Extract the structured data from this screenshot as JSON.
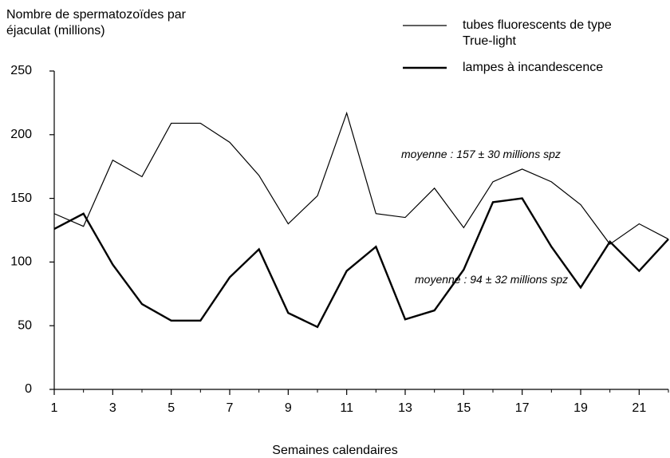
{
  "chart_data": {
    "type": "line",
    "ylabel": "Nombre de spermatozoïdes par éjaculat (millions)",
    "xlabel": "Semaines calendaires",
    "x": [
      1,
      2,
      3,
      4,
      5,
      6,
      7,
      8,
      9,
      10,
      11,
      12,
      13,
      14,
      15,
      16,
      17,
      18,
      19,
      20,
      21,
      22
    ],
    "series": [
      {
        "name": "tubes fluorescents de type True-light",
        "color": "#000000",
        "width": 1.2,
        "values": [
          138,
          128,
          180,
          167,
          209,
          209,
          194,
          168,
          130,
          152,
          217,
          138,
          135,
          158,
          127,
          163,
          173,
          163,
          145,
          114,
          130,
          118
        ]
      },
      {
        "name": "lampes à incandescence",
        "color": "#000000",
        "width": 2.4,
        "values": [
          126,
          138,
          98,
          67,
          54,
          54,
          88,
          110,
          60,
          49,
          93,
          112,
          55,
          62,
          94,
          147,
          150,
          112,
          80,
          116,
          93,
          118
        ]
      }
    ],
    "annotations": [
      "moyenne : 157 ± 30 millions spz",
      "moyenne : 94 ± 32 millions spz"
    ],
    "xlim": [
      1,
      22
    ],
    "xticks": [
      1,
      3,
      5,
      7,
      9,
      11,
      13,
      15,
      17,
      19,
      21
    ],
    "xminorticks": [
      2,
      4,
      6,
      8,
      10,
      12,
      14,
      16,
      18,
      20,
      22
    ],
    "ylim": [
      0,
      250
    ],
    "yticks": [
      0,
      50,
      100,
      150,
      200,
      250
    ],
    "grid": false,
    "legend": "upper right"
  }
}
